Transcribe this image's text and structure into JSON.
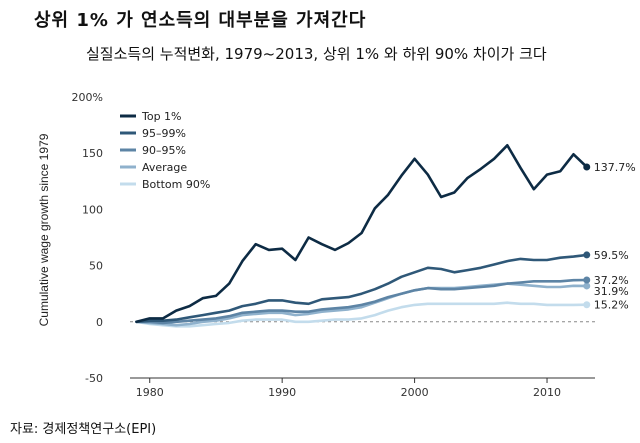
{
  "header": {
    "title": "상위 1% 가 연소득의 대부분을 가져간다",
    "subtitle": "실질소득의 누적변화, 1979~2013, 상위 1% 와 하위 90% 차이가 크다"
  },
  "footer": {
    "source": "자료: 경제정책연구소(EPI)"
  },
  "chart_data": {
    "type": "line",
    "title": "",
    "xlabel": "",
    "ylabel": "Cumulative wage growth since 1979",
    "xlim": [
      1977,
      2014
    ],
    "ylim": [
      -50,
      200
    ],
    "x_ticks": [
      1980,
      1990,
      2000,
      2010
    ],
    "y_ticks": [
      200,
      150,
      100,
      50,
      0,
      -50
    ],
    "y_tick_labels": [
      "200%",
      "150",
      "100",
      "50",
      "0",
      "-50"
    ],
    "grid": false,
    "zero_line": "dashed",
    "legend": "top-left",
    "x": [
      1979,
      1980,
      1981,
      1982,
      1983,
      1984,
      1985,
      1986,
      1987,
      1988,
      1989,
      1990,
      1991,
      1992,
      1993,
      1994,
      1995,
      1996,
      1997,
      1998,
      1999,
      2000,
      2001,
      2002,
      2003,
      2004,
      2005,
      2006,
      2007,
      2008,
      2009,
      2010,
      2011,
      2012,
      2013
    ],
    "series": [
      {
        "name": "Top 1%",
        "color": "#0d2b44",
        "end_label": "137.7%",
        "values": [
          0,
          3,
          3,
          10,
          14,
          21,
          23,
          34,
          54,
          69,
          64,
          65,
          55,
          75,
          69,
          64,
          70,
          79,
          101,
          113,
          130,
          145,
          131,
          111,
          115,
          128,
          136,
          145,
          157,
          137,
          118,
          131,
          134,
          149,
          137.7
        ]
      },
      {
        "name": "95–99%",
        "color": "#2f5878",
        "end_label": "59.5%",
        "values": [
          0,
          1,
          1,
          2,
          4,
          6,
          8,
          10,
          14,
          16,
          19,
          19,
          17,
          16,
          20,
          21,
          22,
          25,
          29,
          34,
          40,
          44,
          48,
          47,
          44,
          46,
          48,
          51,
          54,
          56,
          55,
          55,
          57,
          58,
          59.5
        ]
      },
      {
        "name": "90–95%",
        "color": "#5d84a5",
        "end_label": "37.2%",
        "values": [
          0,
          0,
          -1,
          0,
          1,
          2,
          3,
          5,
          8,
          9,
          10,
          10,
          9,
          9,
          11,
          12,
          13,
          15,
          18,
          22,
          25,
          28,
          30,
          29,
          29,
          30,
          31,
          32,
          34,
          35,
          36,
          36,
          36,
          37,
          37.2
        ]
      },
      {
        "name": "Average",
        "color": "#8fb1cc",
        "end_label": "31.9%",
        "values": [
          0,
          -1,
          -2,
          -3,
          -2,
          0,
          1,
          3,
          6,
          7,
          8,
          8,
          6,
          7,
          9,
          10,
          11,
          13,
          17,
          21,
          25,
          28,
          30,
          30,
          30,
          31,
          32,
          33,
          34,
          33,
          32,
          31,
          31,
          32,
          31.9
        ]
      },
      {
        "name": "Bottom 90%",
        "color": "#c3dcec",
        "end_label": "15.2%",
        "values": [
          0,
          -2,
          -3,
          -4,
          -4,
          -3,
          -2,
          -1,
          1,
          2,
          2,
          2,
          0,
          0,
          1,
          2,
          2,
          3,
          6,
          10,
          13,
          15,
          16,
          16,
          16,
          16,
          16,
          16,
          17,
          16,
          16,
          15,
          15,
          15,
          15.2
        ]
      }
    ]
  }
}
